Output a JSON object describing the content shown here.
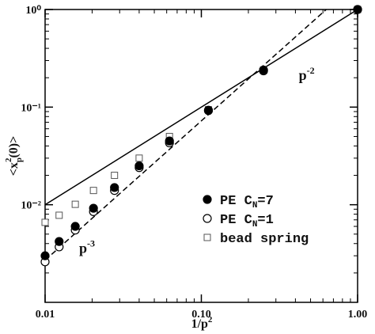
{
  "chart_data": {
    "type": "scatter",
    "xlabel": {
      "base": "1/p",
      "sup": "2"
    },
    "ylabel": {
      "base": "<x",
      "sub": "p",
      "sup": "2",
      "rest": "(0)>"
    },
    "log_x": true,
    "log_y": true,
    "xlim": [
      0.01,
      1
    ],
    "ylim": [
      0.001,
      1
    ],
    "xticks": [
      0.01,
      {
        "value": 0.1,
        "label": "0.10"
      },
      {
        "value": 1,
        "label": "1.00"
      }
    ],
    "yticks": [
      {
        "value": 0.01,
        "label": "10⁻²"
      },
      {
        "value": 0.1,
        "label": "10⁻¹"
      },
      {
        "value": 1,
        "label": "10⁰"
      }
    ],
    "series": [
      {
        "name": "PE C",
        "name_sub": "N",
        "name_rest": "=7",
        "marker": "filled-circle",
        "color": "#000000",
        "x": [
          1,
          0.25,
          0.111,
          0.0625,
          0.04,
          0.0278,
          0.0204,
          0.0156,
          0.0123,
          0.01
        ],
        "values": [
          1,
          0.24,
          0.093,
          0.045,
          0.025,
          0.015,
          0.0092,
          0.006,
          0.0042,
          0.003
        ]
      },
      {
        "name": "PE C",
        "name_sub": "N",
        "name_rest": "=1",
        "marker": "open-circle",
        "color": "#000000",
        "x": [
          1,
          0.25,
          0.111,
          0.0625,
          0.04,
          0.0278,
          0.0204,
          0.0156,
          0.0123,
          0.01
        ],
        "values": [
          1,
          0.235,
          0.092,
          0.043,
          0.024,
          0.014,
          0.0085,
          0.0055,
          0.0037,
          0.0026
        ]
      },
      {
        "name": "bead spring",
        "marker": "open-square",
        "color": "#555555",
        "x": [
          1,
          0.25,
          0.111,
          0.0625,
          0.04,
          0.0278,
          0.0204,
          0.0156,
          0.0123,
          0.01
        ],
        "values": [
          1,
          0.24,
          0.094,
          0.05,
          0.03,
          0.02,
          0.014,
          0.0101,
          0.0078,
          0.0066
        ]
      }
    ],
    "lines": [
      {
        "dash": false,
        "x": [
          0.01,
          1
        ],
        "values": [
          0.01,
          1
        ]
      },
      {
        "dash": true,
        "x": [
          0.01,
          0.63
        ],
        "values": [
          0.0027,
          1
        ]
      }
    ],
    "annotations": [
      {
        "text": "p",
        "sup": "-2",
        "x": 0.42,
        "y": 0.19
      },
      {
        "text": "p",
        "sup": "-3",
        "x": 0.0165,
        "y": 0.0032
      }
    ]
  }
}
